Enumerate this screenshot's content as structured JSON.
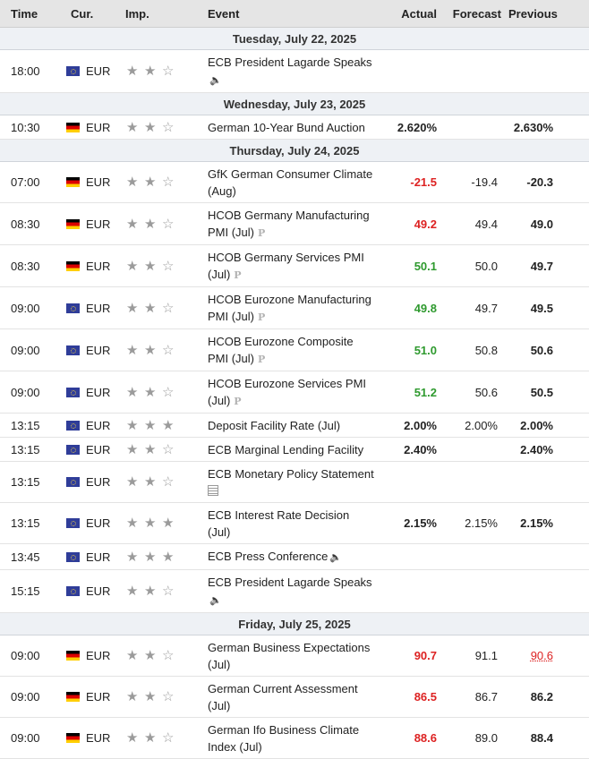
{
  "columns": {
    "time": "Time",
    "cur": "Cur.",
    "imp": "Imp.",
    "event": "Event",
    "actual": "Actual",
    "forecast": "Forecast",
    "previous": "Previous"
  },
  "colors": {
    "accent_red": "#dd2222",
    "accent_green": "#2f9a2f"
  },
  "days": [
    {
      "label": "Tuesday, July 22, 2025",
      "events": [
        {
          "time": "18:00",
          "flag": "eu-flag-icon",
          "cur": "EUR",
          "imp": 2,
          "event": "ECB President Lagarde Speaks",
          "icon": "speaker-icon",
          "actual": "",
          "forecast": "",
          "previous": ""
        }
      ]
    },
    {
      "label": "Wednesday, July 23, 2025",
      "events": [
        {
          "time": "10:30",
          "flag": "de-flag-icon",
          "cur": "EUR",
          "imp": 2,
          "event": "German 10-Year Bund Auction",
          "icon": "",
          "actual": "2.620%",
          "forecast": "",
          "previous": "2.630%"
        }
      ]
    },
    {
      "label": "Thursday, July 24, 2025",
      "events": [
        {
          "time": "07:00",
          "flag": "de-flag-icon",
          "cur": "EUR",
          "imp": 2,
          "event": "GfK German Consumer Climate (Aug)",
          "icon": "",
          "actual": "-21.5",
          "forecast": "-19.4",
          "previous": "-20.3"
        },
        {
          "time": "08:30",
          "flag": "de-flag-icon",
          "cur": "EUR",
          "imp": 2,
          "event": "HCOB Germany Manufacturing PMI (Jul)",
          "icon": "preliminary-icon",
          "actual": "49.2",
          "forecast": "49.4",
          "previous": "49.0"
        },
        {
          "time": "08:30",
          "flag": "de-flag-icon",
          "cur": "EUR",
          "imp": 2,
          "event": "HCOB Germany Services PMI (Jul)",
          "icon": "preliminary-icon",
          "actual": "50.1",
          "forecast": "50.0",
          "previous": "49.7"
        },
        {
          "time": "09:00",
          "flag": "eu-flag-icon",
          "cur": "EUR",
          "imp": 2,
          "event": "HCOB Eurozone Manufacturing PMI (Jul)",
          "icon": "preliminary-icon",
          "actual": "49.8",
          "forecast": "49.7",
          "previous": "49.5"
        },
        {
          "time": "09:00",
          "flag": "eu-flag-icon",
          "cur": "EUR",
          "imp": 2,
          "event": "HCOB Eurozone Composite PMI (Jul)",
          "icon": "preliminary-icon",
          "actual": "51.0",
          "forecast": "50.8",
          "previous": "50.6"
        },
        {
          "time": "09:00",
          "flag": "eu-flag-icon",
          "cur": "EUR",
          "imp": 2,
          "event": "HCOB Eurozone Services PMI (Jul)",
          "icon": "preliminary-icon",
          "actual": "51.2",
          "forecast": "50.6",
          "previous": "50.5"
        },
        {
          "time": "13:15",
          "flag": "eu-flag-icon",
          "cur": "EUR",
          "imp": 3,
          "event": "Deposit Facility Rate (Jul)",
          "icon": "",
          "actual": "2.00%",
          "forecast": "2.00%",
          "previous": "2.00%"
        },
        {
          "time": "13:15",
          "flag": "eu-flag-icon",
          "cur": "EUR",
          "imp": 2,
          "event": "ECB Marginal Lending Facility",
          "icon": "",
          "actual": "2.40%",
          "forecast": "",
          "previous": "2.40%"
        },
        {
          "time": "13:15",
          "flag": "eu-flag-icon",
          "cur": "EUR",
          "imp": 2,
          "event": "ECB Monetary Policy Statement",
          "icon": "document-icon",
          "actual": "",
          "forecast": "",
          "previous": ""
        },
        {
          "time": "13:15",
          "flag": "eu-flag-icon",
          "cur": "EUR",
          "imp": 3,
          "event": "ECB Interest Rate Decision (Jul)",
          "icon": "",
          "actual": "2.15%",
          "forecast": "2.15%",
          "previous": "2.15%"
        },
        {
          "time": "13:45",
          "flag": "eu-flag-icon",
          "cur": "EUR",
          "imp": 3,
          "event": "ECB Press Conference",
          "icon": "speaker-icon",
          "actual": "",
          "forecast": "",
          "previous": ""
        },
        {
          "time": "15:15",
          "flag": "eu-flag-icon",
          "cur": "EUR",
          "imp": 2,
          "event": "ECB President Lagarde Speaks",
          "icon": "speaker-icon",
          "actual": "",
          "forecast": "",
          "previous": ""
        }
      ]
    },
    {
      "label": "Friday, July 25, 2025",
      "events": [
        {
          "time": "09:00",
          "flag": "de-flag-icon",
          "cur": "EUR",
          "imp": 2,
          "event": "German Business Expectations (Jul)",
          "icon": "",
          "actual": "90.7",
          "forecast": "91.1",
          "previous": "90.6"
        },
        {
          "time": "09:00",
          "flag": "de-flag-icon",
          "cur": "EUR",
          "imp": 2,
          "event": "German Current Assessment (Jul)",
          "icon": "",
          "actual": "86.5",
          "forecast": "86.7",
          "previous": "86.2"
        },
        {
          "time": "09:00",
          "flag": "de-flag-icon",
          "cur": "EUR",
          "imp": 2,
          "event": "German Ifo Business Climate Index (Jul)",
          "icon": "",
          "actual": "88.6",
          "forecast": "89.0",
          "previous": "88.4"
        }
      ]
    }
  ]
}
